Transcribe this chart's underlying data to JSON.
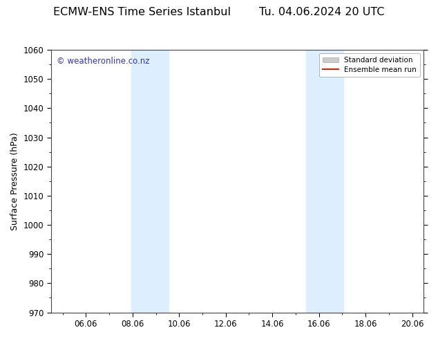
{
  "title": "ECMW-ENS Time Series Istanbul        Tu. 04.06.2024 20 UTC",
  "ylabel": "Surface Pressure (hPa)",
  "ylim": [
    970,
    1060
  ],
  "yticks": [
    970,
    980,
    990,
    1000,
    1010,
    1020,
    1030,
    1040,
    1050,
    1060
  ],
  "xlim": [
    4.5,
    20.5
  ],
  "xtick_labels": [
    "06.06",
    "08.06",
    "10.06",
    "12.06",
    "14.06",
    "16.06",
    "18.06",
    "20.06"
  ],
  "xtick_positions": [
    6,
    8,
    10,
    12,
    14,
    16,
    18,
    20
  ],
  "shaded_regions": [
    {
      "x_start": 7.95,
      "x_end": 9.55,
      "color": "#ddeeff"
    },
    {
      "x_start": 15.45,
      "x_end": 17.05,
      "color": "#ddeeff"
    }
  ],
  "watermark_text": "© weatheronline.co.nz",
  "watermark_color": "#3333bb",
  "watermark_fontsize": 8.5,
  "legend_items": [
    {
      "label": "Standard deviation",
      "patch_color": "#cccccc"
    },
    {
      "label": "Ensemble mean run",
      "line_color": "#dd2200"
    }
  ],
  "background_color": "#ffffff",
  "plot_bg_color": "#ffffff",
  "title_fontsize": 11.5,
  "ylabel_fontsize": 9,
  "tick_fontsize": 8.5
}
